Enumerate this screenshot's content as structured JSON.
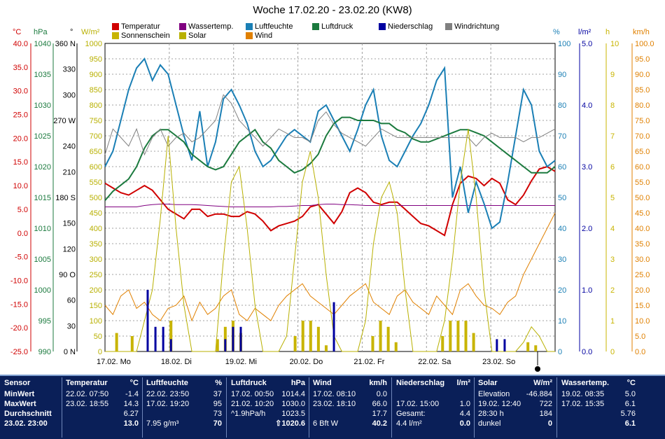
{
  "title": "Woche 17.02.20 - 23.02.20 (KW8)",
  "legend": [
    {
      "label": "Temperatur",
      "color": "#d00000"
    },
    {
      "label": "Wassertemp.",
      "color": "#800080"
    },
    {
      "label": "Luftfeuchte",
      "color": "#1a7fb5"
    },
    {
      "label": "Luftdruck",
      "color": "#1b7a3e"
    },
    {
      "label": "Niederschlag",
      "color": "#0000a0"
    },
    {
      "label": "Windrichtung",
      "color": "#808080"
    },
    {
      "label": "Sonnenschein",
      "color": "#c8b400"
    },
    {
      "label": "Solar",
      "color": "#b8b000"
    },
    {
      "label": "Wind",
      "color": "#e08000"
    }
  ],
  "units": {
    "temp": "°C",
    "press": "hPa",
    "dir": "°",
    "solar": "W/m²",
    "hum": "%",
    "rain": "l/m²",
    "sun": "h",
    "wind": "km/h"
  },
  "chart_data": {
    "type": "line",
    "x_labels": [
      "17.02. Mo",
      "18.02. Di",
      "19.02. Mi",
      "20.02. Do",
      "21.02. Fr",
      "22.02. Sa",
      "23.02. So"
    ],
    "axes": {
      "temp": {
        "ticks": [
          "40.0",
          "35.0",
          "30.0",
          "25.0",
          "20.0",
          "15.0",
          "10.0",
          "5.0",
          "0.0",
          "-5.0",
          "-10.0",
          "-15.0",
          "-20.0",
          "-25.0"
        ],
        "color": "#d00000"
      },
      "press": {
        "ticks": [
          "1040",
          "1035",
          "1030",
          "1025",
          "1020",
          "1015",
          "1010",
          "1005",
          "1000",
          "995",
          "990"
        ],
        "color": "#1b7a3e"
      },
      "dir": {
        "ticks": [
          "360 N",
          "330",
          "300",
          "270 W",
          "240",
          "210",
          "180 S",
          "150",
          "120",
          "90 O",
          "60",
          "30",
          "0 N"
        ],
        "color": "#000000"
      },
      "solar": {
        "ticks": [
          "1000",
          "950",
          "900",
          "850",
          "800",
          "750",
          "700",
          "650",
          "600",
          "550",
          "500",
          "450",
          "400",
          "350",
          "300",
          "250",
          "200",
          "150",
          "100",
          "50",
          "0"
        ],
        "color": "#b8b000"
      },
      "hum": {
        "ticks": [
          "100",
          "90",
          "80",
          "70",
          "60",
          "50",
          "40",
          "30",
          "20",
          "10",
          "0"
        ],
        "color": "#1a7fb5"
      },
      "rain": {
        "ticks": [
          "5.0",
          "4.0",
          "3.0",
          "2.0",
          "1.0",
          "0.0"
        ],
        "color": "#0000a0"
      },
      "sun": {
        "ticks": [
          "10",
          "9",
          "8",
          "7",
          "6",
          "5",
          "4",
          "3",
          "2",
          "1",
          "0"
        ],
        "color": "#c8b400"
      },
      "wind": {
        "ticks": [
          "100.0",
          "95.0",
          "90.0",
          "85.0",
          "80.0",
          "75.0",
          "70.0",
          "65.0",
          "60.0",
          "55.0",
          "50.0",
          "45.0",
          "40.0",
          "35.0",
          "30.0",
          "25.0",
          "20.0",
          "15.0",
          "10.0",
          "5.0",
          "0.0"
        ],
        "color": "#e08000"
      }
    },
    "series": [
      {
        "name": "Temperatur",
        "unit": "°C",
        "color": "#d00000",
        "values": [
          10.5,
          9.5,
          8.5,
          8.0,
          9.0,
          10.0,
          9.0,
          7.0,
          5.0,
          4.0,
          3.0,
          5.0,
          5.0,
          3.5,
          4.0,
          4.0,
          3.5,
          3.5,
          4.5,
          4.0,
          2.5,
          0.5,
          1.5,
          2.0,
          2.5,
          3.5,
          5.5,
          6.0,
          4.0,
          2.0,
          4.5,
          8.5,
          9.5,
          8.5,
          6.5,
          6.0,
          6.5,
          6.5,
          5.0,
          3.5,
          2.0,
          1.5,
          0.5,
          -0.5,
          6.0,
          10.5,
          12.0,
          11.5,
          10.0,
          11.5,
          10.5,
          7.0,
          6.0,
          8.0,
          11.0,
          13.5,
          14.0,
          13.0
        ]
      },
      {
        "name": "Wassertemp.",
        "unit": "°C",
        "color": "#800080",
        "values": [
          5.5,
          5.5,
          5.5,
          5.5,
          5.5,
          5.8,
          6.0,
          6.1,
          6.1,
          6.0,
          6.0,
          6.0,
          5.9,
          5.8,
          5.7,
          5.6,
          5.5,
          5.5,
          5.5,
          5.5,
          5.5,
          5.5,
          5.6,
          5.6,
          5.7,
          5.8,
          5.8,
          6.0,
          6.1,
          6.1,
          6.0,
          6.0,
          5.9,
          5.8,
          5.8,
          5.8,
          5.8,
          5.8,
          5.8,
          5.8,
          5.8,
          5.8,
          5.8,
          5.8,
          5.8,
          5.8,
          5.8,
          5.8,
          5.8,
          5.8,
          5.8,
          5.8,
          5.8,
          5.8,
          5.8,
          5.8,
          5.8,
          5.8
        ]
      },
      {
        "name": "Luftfeuchte",
        "unit": "%",
        "color": "#1a7fb5",
        "values": [
          60,
          65,
          75,
          85,
          92,
          95,
          88,
          93,
          90,
          80,
          70,
          62,
          78,
          60,
          68,
          82,
          85,
          80,
          74,
          65,
          60,
          62,
          66,
          70,
          72,
          70,
          68,
          78,
          80,
          75,
          70,
          65,
          72,
          80,
          85,
          70,
          62,
          60,
          65,
          70,
          74,
          80,
          88,
          92,
          50,
          60,
          45,
          55,
          48,
          40,
          42,
          55,
          70,
          85,
          80,
          65,
          60,
          62
        ]
      },
      {
        "name": "Luftdruck",
        "unit": "hPa",
        "color": "#1b7a3e",
        "values": [
          1014.5,
          1016,
          1017,
          1018,
          1020,
          1023,
          1025,
          1026,
          1026,
          1025,
          1024,
          1022,
          1021,
          1020,
          1019.5,
          1020,
          1022,
          1024,
          1025,
          1026,
          1024,
          1023,
          1021,
          1020,
          1019,
          1019.5,
          1020.5,
          1022,
          1025,
          1027,
          1028,
          1028,
          1027.5,
          1027.5,
          1027.5,
          1027,
          1027,
          1026,
          1025.5,
          1024.5,
          1024,
          1024,
          1024.5,
          1025,
          1025.5,
          1026,
          1026,
          1025.5,
          1025,
          1024,
          1023,
          1022,
          1021,
          1020,
          1019,
          1019,
          1019,
          1020
        ]
      },
      {
        "name": "Windrichtung",
        "unit": "°",
        "color": "#808080",
        "values": [
          230,
          260,
          250,
          240,
          260,
          230,
          250,
          260,
          240,
          250,
          255,
          245,
          250,
          260,
          270,
          300,
          290,
          270,
          260,
          250,
          240,
          250,
          260,
          255,
          250,
          250,
          245,
          270,
          280,
          265,
          255,
          250,
          245,
          240,
          250,
          260,
          255,
          250,
          250,
          250,
          250,
          250,
          250,
          250,
          250,
          250,
          250,
          240,
          250,
          255,
          250,
          250,
          250,
          245,
          250,
          250,
          255,
          260
        ]
      },
      {
        "name": "Wind",
        "unit": "km/h",
        "color": "#e08000",
        "values": [
          15,
          12,
          18,
          20,
          14,
          16,
          12,
          10,
          14,
          15,
          18,
          10,
          16,
          12,
          14,
          18,
          20,
          12,
          10,
          14,
          12,
          10,
          15,
          18,
          20,
          22,
          18,
          16,
          14,
          12,
          15,
          18,
          20,
          22,
          16,
          14,
          12,
          18,
          20,
          16,
          14,
          12,
          18,
          15,
          12,
          20,
          22,
          18,
          15,
          14,
          12,
          16,
          18,
          25,
          30,
          35,
          40,
          45
        ]
      },
      {
        "name": "Solar",
        "unit": "W/m²",
        "color": "#b8b000",
        "values": [
          0,
          0,
          0,
          0,
          0,
          100,
          200,
          430,
          700,
          400,
          150,
          0,
          0,
          0,
          0,
          300,
          550,
          600,
          400,
          150,
          0,
          0,
          0,
          50,
          300,
          550,
          650,
          500,
          250,
          50,
          0,
          0,
          0,
          100,
          350,
          500,
          550,
          450,
          200,
          0,
          0,
          0,
          0,
          100,
          300,
          550,
          722,
          500,
          200,
          0,
          0,
          0,
          0,
          30,
          80,
          50,
          0,
          0
        ]
      },
      {
        "name": "Sonnenschein",
        "unit": "h",
        "color": "#c8b400",
        "values": [
          0,
          0.6,
          0,
          0.5,
          0,
          0,
          0,
          0,
          1,
          0,
          0,
          0,
          0,
          0,
          0.4,
          0.8,
          1,
          0.6,
          0,
          0,
          0,
          0,
          0,
          0,
          0.5,
          1,
          1,
          0.8,
          0.2,
          0,
          0,
          0,
          0,
          0,
          0.5,
          1,
          0.8,
          0.3,
          0,
          0,
          0,
          0,
          0,
          0.5,
          1,
          1,
          1,
          0.6,
          0,
          0,
          0,
          0,
          0,
          0,
          0.3,
          0.2,
          0,
          0
        ]
      },
      {
        "name": "Niederschlag",
        "unit": "l/m²",
        "color": "#0000a0",
        "values": [
          0,
          0,
          0,
          0,
          0,
          1.0,
          0.4,
          0.4,
          0.2,
          0,
          0,
          0,
          0,
          0,
          0,
          0.2,
          0.4,
          0.4,
          0,
          0,
          0,
          0,
          0,
          0,
          0,
          0,
          0,
          0,
          0,
          0.8,
          0,
          0,
          0,
          0,
          0,
          0,
          0,
          0,
          0,
          0,
          0,
          0,
          0,
          0,
          0,
          0,
          0,
          0,
          0,
          0,
          0.2,
          0.2,
          0,
          0,
          0,
          0,
          0,
          0
        ]
      }
    ]
  },
  "table": {
    "sensor": {
      "head": "Sensor",
      "min": "MinWert",
      "max": "MaxWert",
      "avg": "Durchschnitt",
      "now": "23.02. 23:00"
    },
    "temp": {
      "head": "Temperatur",
      "unit": "°C",
      "min_t": "22.02.  07:50",
      "min_v": "-1.4",
      "max_t": "23.02.  18:55",
      "max_v": "14.3",
      "avg": "6.27",
      "now": "13.0"
    },
    "hum": {
      "head": "Luftfeuchte",
      "unit": "%",
      "min_t": "22.02.  23:50",
      "min_v": "37",
      "max_t": "17.02.  19:20",
      "max_v": "95",
      "avg": "73",
      "now_l": "7.95 g/m³",
      "now": "70"
    },
    "press": {
      "head": "Luftdruck",
      "unit": "hPa",
      "min_t": "17.02.  00:50",
      "min_v": "1014.4",
      "max_t": "21.02.  10:20",
      "max_v": "1030.0",
      "avg_l": "^1.9hPa/h",
      "avg": "1023.5",
      "now": "1020.6",
      "arrow": "⇧"
    },
    "wind": {
      "head": "Wind",
      "unit": "km/h",
      "min_t": "17.02.  08:10",
      "min_v": "0.0",
      "max_t": "23.02.  18:10",
      "max_v": "66.0",
      "avg": "17.7",
      "now_l": "6 Bft W",
      "now": "40.2"
    },
    "rain": {
      "head": "Niederschlag",
      "unit": "l/m²",
      "max_t": "17.02.  15:00",
      "max_v": "1.0",
      "avg_l": "Gesamt:",
      "avg": "4.4",
      "now_l": "4.4 l/m²",
      "now": "0.0"
    },
    "solar": {
      "head": "Solar",
      "unit": "W/m²",
      "min_l": "Elevation",
      "min_v": "-46.884",
      "max_t": "19.02.  12:40",
      "max_v": "722",
      "avg_l": "28:30 h",
      "avg": "184",
      "now_l": "dunkel",
      "now": "0"
    },
    "water": {
      "head": "Wassertemp.",
      "unit": "°C",
      "min_t": "19.02.  08:35",
      "min_v": "5.0",
      "max_t": "17.02.  15:35",
      "max_v": "6.1",
      "avg": "5.76",
      "now": "6.1"
    }
  }
}
